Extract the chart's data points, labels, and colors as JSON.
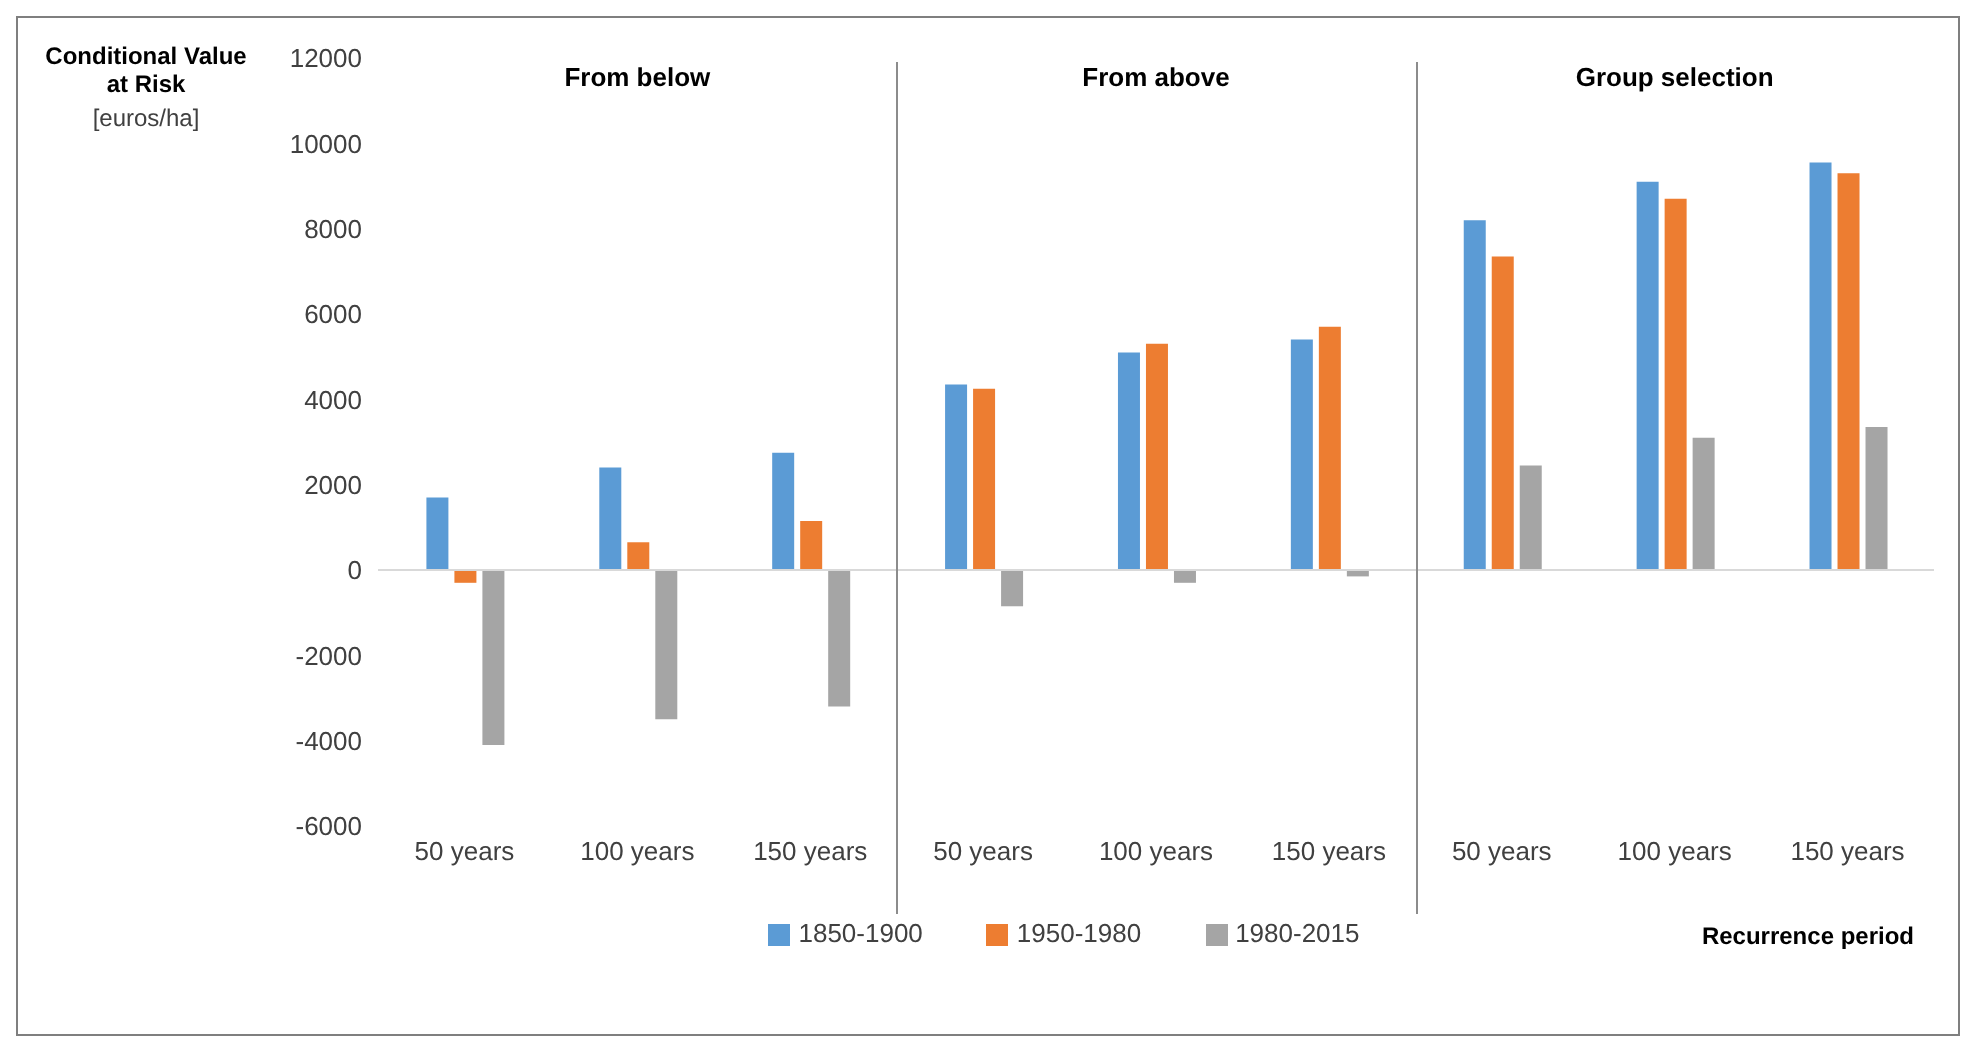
{
  "chart_data": {
    "type": "bar",
    "ylabel": "Conditional Value at Risk [euros/ha]",
    "xlabel": "Recurrence period",
    "categories": [
      "50 years",
      "100 years",
      "150 years",
      "50 years",
      "100 years",
      "150 years",
      "50 years",
      "100 years",
      "150 years"
    ],
    "series": [
      {
        "name": "1850-1900",
        "color": "#5b9bd5",
        "values": [
          1700,
          2400,
          2750,
          4350,
          5100,
          5400,
          8200,
          9100,
          9550
        ]
      },
      {
        "name": "1950-1980",
        "color": "#ed7d31",
        "values": [
          -300,
          650,
          1150,
          4250,
          5300,
          5700,
          7350,
          8700,
          9300
        ]
      },
      {
        "name": "1980-2015",
        "color": "#a5a5a5",
        "values": [
          -4100,
          -3500,
          -3200,
          -850,
          -300,
          -150,
          2450,
          3100,
          3350
        ]
      }
    ],
    "ylim": [
      -6000,
      12000
    ],
    "yticks": [
      -6000,
      -4000,
      -2000,
      0,
      2000,
      4000,
      6000,
      8000,
      10000,
      12000
    ],
    "ref_lines": [
      {
        "axis": "y",
        "value": 0,
        "color": "#d9d9d9"
      }
    ],
    "annotations": [
      "From below",
      "From above",
      "Group selection"
    ],
    "legend": "bottom"
  }
}
